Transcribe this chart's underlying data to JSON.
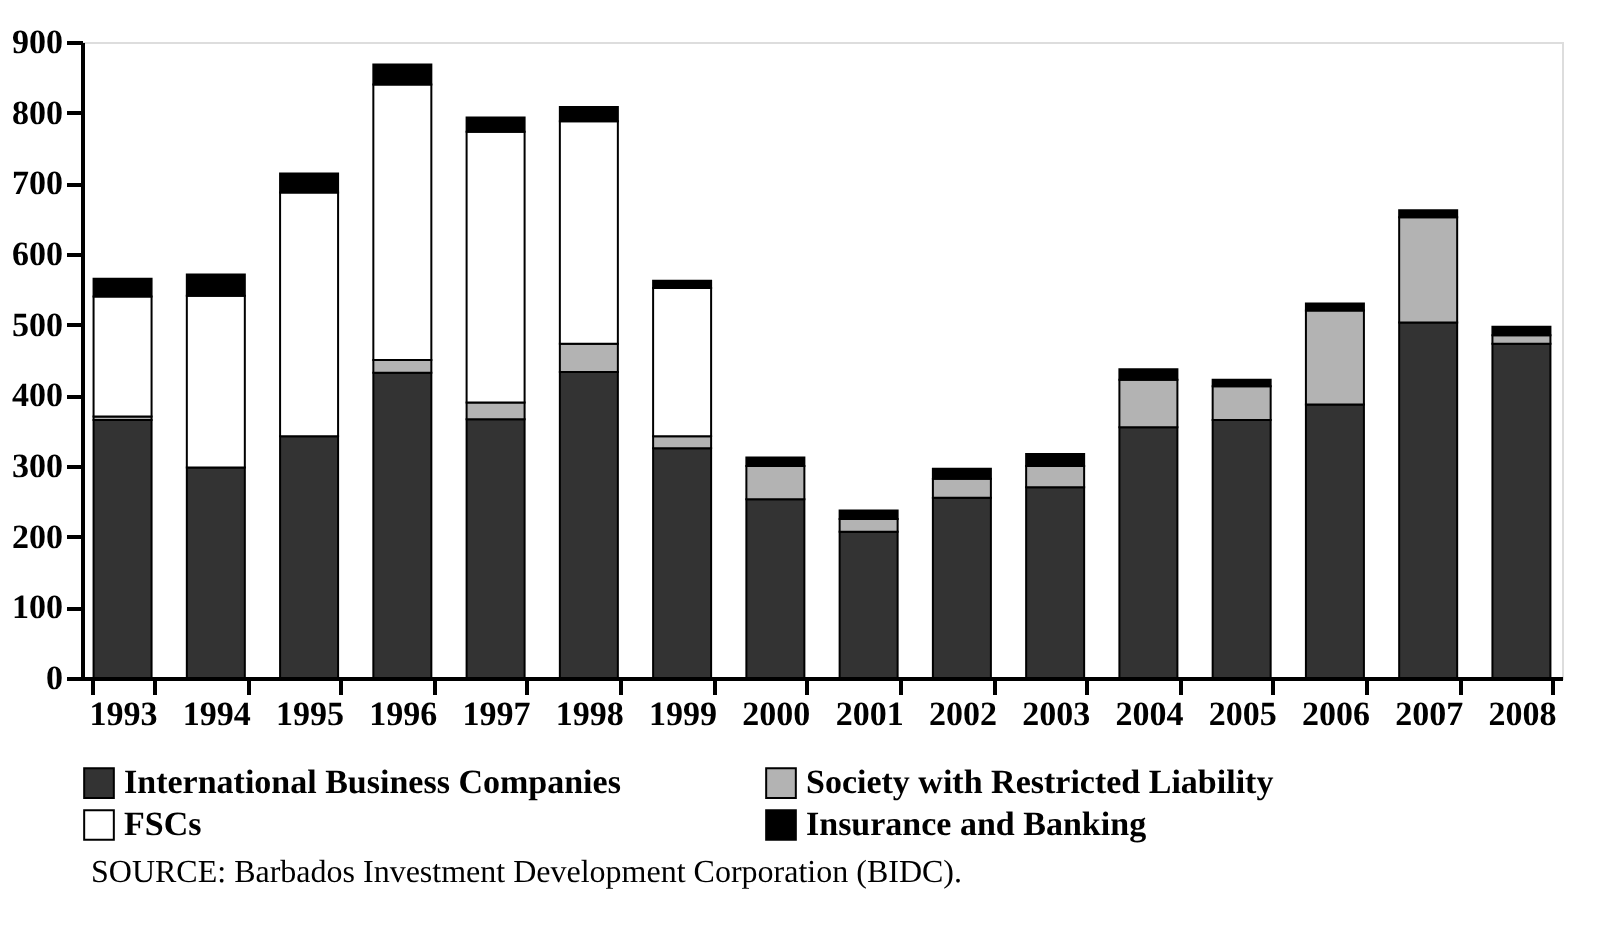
{
  "chart_data": {
    "type": "bar",
    "stacked": true,
    "categories": [
      "1993",
      "1994",
      "1995",
      "1996",
      "1997",
      "1998",
      "1999",
      "2000",
      "2001",
      "2002",
      "2003",
      "2004",
      "2005",
      "2006",
      "2007",
      "2008"
    ],
    "series": [
      {
        "name": "International Business Companies",
        "color": "#333333",
        "values": [
          365,
          298,
          342,
          432,
          366,
          433,
          325,
          253,
          207,
          255,
          270,
          355,
          365,
          387,
          503,
          473
        ]
      },
      {
        "name": "Society with Restricted Liability",
        "color": "#b3b3b3",
        "values": [
          5,
          null,
          null,
          18,
          24,
          40,
          17,
          47,
          18,
          27,
          30,
          67,
          48,
          133,
          149,
          12
        ]
      },
      {
        "name": "FSCs",
        "color": "#ffffff",
        "values": [
          170,
          243,
          345,
          390,
          383,
          315,
          210,
          null,
          null,
          null,
          null,
          null,
          null,
          null,
          null,
          null
        ]
      },
      {
        "name": "Insurance and Banking",
        "color": "#000000",
        "values": [
          25,
          30,
          27,
          28,
          20,
          20,
          10,
          12,
          12,
          14,
          17,
          15,
          9,
          10,
          10,
          12
        ]
      }
    ],
    "ylim": [
      0,
      900
    ],
    "yticks": [
      0,
      100,
      200,
      300,
      400,
      500,
      600,
      700,
      800,
      900
    ],
    "grid": false,
    "legend": "bottom",
    "annotations": [
      "SOURCE: Barbados Investment Development Corporation (BIDC)."
    ]
  }
}
